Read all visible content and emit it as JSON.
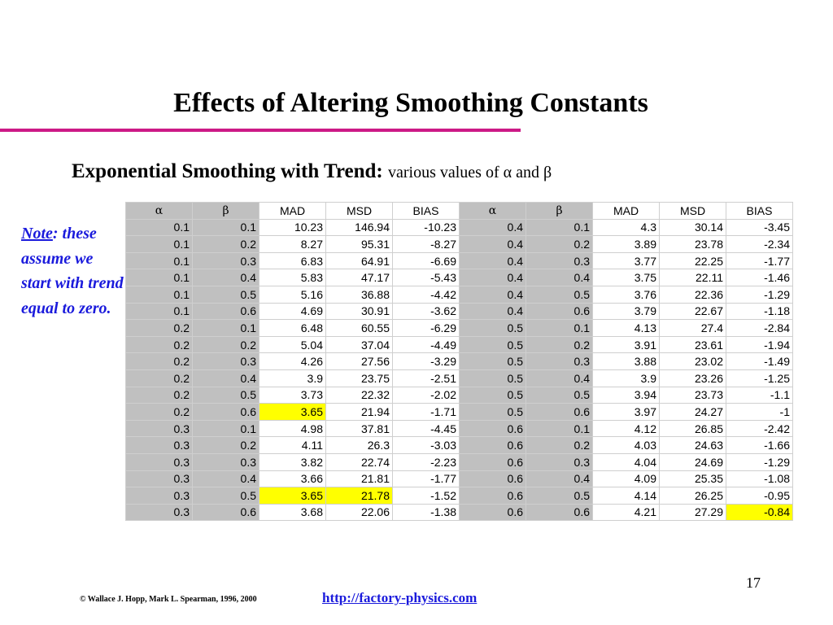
{
  "slide": {
    "title": "Effects of Altering Smoothing Constants",
    "subtitle_bold": "Exponential Smoothing with Trend:",
    "subtitle_normal": "various values of α and β",
    "note_label": "Note",
    "note_text": ": these assume we start with trend equal to zero.",
    "page_number": "17",
    "copyright": "© Wallace J. Hopp, Mark L. Spearman, 1996, 2000",
    "link": "http://factory-physics.com"
  },
  "colors": {
    "rule": "#cc1a86",
    "note_and_link": "#1a1adc",
    "parameter_column_fill": "#c0c0c0",
    "highlight": "#ffff00"
  },
  "table": {
    "headers": [
      "α",
      "β",
      "MAD",
      "MSD",
      "BIAS",
      "α",
      "β",
      "MAD",
      "MSD",
      "BIAS"
    ],
    "rows": [
      [
        "0.1",
        "0.1",
        "10.23",
        "146.94",
        "-10.23",
        "0.4",
        "0.1",
        "4.3",
        "30.14",
        "-3.45"
      ],
      [
        "0.1",
        "0.2",
        "8.27",
        "95.31",
        "-8.27",
        "0.4",
        "0.2",
        "3.89",
        "23.78",
        "-2.34"
      ],
      [
        "0.1",
        "0.3",
        "6.83",
        "64.91",
        "-6.69",
        "0.4",
        "0.3",
        "3.77",
        "22.25",
        "-1.77"
      ],
      [
        "0.1",
        "0.4",
        "5.83",
        "47.17",
        "-5.43",
        "0.4",
        "0.4",
        "3.75",
        "22.11",
        "-1.46"
      ],
      [
        "0.1",
        "0.5",
        "5.16",
        "36.88",
        "-4.42",
        "0.4",
        "0.5",
        "3.76",
        "22.36",
        "-1.29"
      ],
      [
        "0.1",
        "0.6",
        "4.69",
        "30.91",
        "-3.62",
        "0.4",
        "0.6",
        "3.79",
        "22.67",
        "-1.18"
      ],
      [
        "0.2",
        "0.1",
        "6.48",
        "60.55",
        "-6.29",
        "0.5",
        "0.1",
        "4.13",
        "27.4",
        "-2.84"
      ],
      [
        "0.2",
        "0.2",
        "5.04",
        "37.04",
        "-4.49",
        "0.5",
        "0.2",
        "3.91",
        "23.61",
        "-1.94"
      ],
      [
        "0.2",
        "0.3",
        "4.26",
        "27.56",
        "-3.29",
        "0.5",
        "0.3",
        "3.88",
        "23.02",
        "-1.49"
      ],
      [
        "0.2",
        "0.4",
        "3.9",
        "23.75",
        "-2.51",
        "0.5",
        "0.4",
        "3.9",
        "23.26",
        "-1.25"
      ],
      [
        "0.2",
        "0.5",
        "3.73",
        "22.32",
        "-2.02",
        "0.5",
        "0.5",
        "3.94",
        "23.73",
        "-1.1"
      ],
      [
        "0.2",
        "0.6",
        "3.65",
        "21.94",
        "-1.71",
        "0.5",
        "0.6",
        "3.97",
        "24.27",
        "-1"
      ],
      [
        "0.3",
        "0.1",
        "4.98",
        "37.81",
        "-4.45",
        "0.6",
        "0.1",
        "4.12",
        "26.85",
        "-2.42"
      ],
      [
        "0.3",
        "0.2",
        "4.11",
        "26.3",
        "-3.03",
        "0.6",
        "0.2",
        "4.03",
        "24.63",
        "-1.66"
      ],
      [
        "0.3",
        "0.3",
        "3.82",
        "22.74",
        "-2.23",
        "0.6",
        "0.3",
        "4.04",
        "24.69",
        "-1.29"
      ],
      [
        "0.3",
        "0.4",
        "3.66",
        "21.81",
        "-1.77",
        "0.6",
        "0.4",
        "4.09",
        "25.35",
        "-1.08"
      ],
      [
        "0.3",
        "0.5",
        "3.65",
        "21.78",
        "-1.52",
        "0.6",
        "0.5",
        "4.14",
        "26.25",
        "-0.95"
      ],
      [
        "0.3",
        "0.6",
        "3.68",
        "22.06",
        "-1.38",
        "0.6",
        "0.6",
        "4.21",
        "27.29",
        "-0.84"
      ]
    ],
    "highlighted_cells": [
      {
        "row": 11,
        "col": 2
      },
      {
        "row": 16,
        "col": 2
      },
      {
        "row": 16,
        "col": 3
      },
      {
        "row": 17,
        "col": 9
      }
    ]
  }
}
